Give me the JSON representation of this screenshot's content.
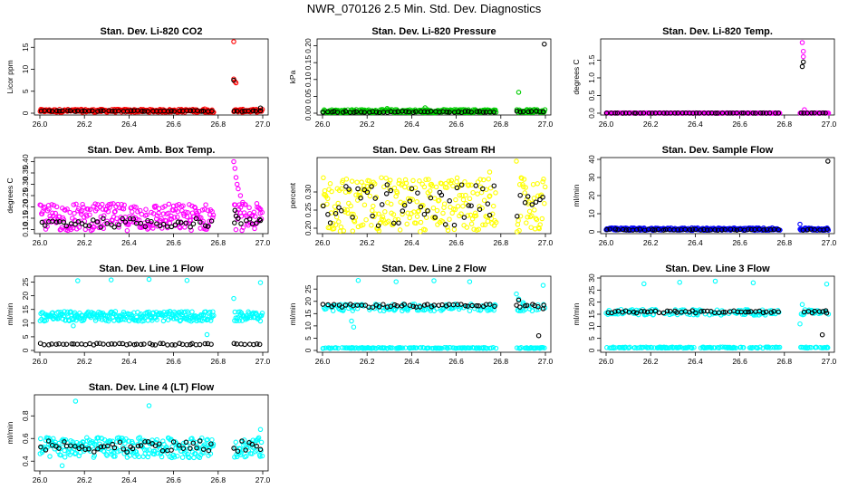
{
  "page": {
    "title": "NWR_070126  2.5 Min. Std. Dev. Diagnostics"
  },
  "colors": {
    "red": "#ff0000",
    "green": "#00cc00",
    "magenta": "#ff00ff",
    "yellow": "#ffff00",
    "blue": "#0000ff",
    "cyan": "#00ffff",
    "black": "#000000"
  },
  "chart_data": [
    {
      "type": "scatter",
      "title": "Stan. Dev. Li-820 CO2",
      "xlabel": "",
      "ylabel": "Licor ppm",
      "xlim": [
        26.0,
        27.0
      ],
      "ylim": [
        0,
        16.5
      ],
      "xticks": [
        "26.0",
        "26.2",
        "26.4",
        "26.6",
        "26.8",
        "27.0"
      ],
      "yticks": [
        0,
        5,
        10,
        15
      ],
      "series": [
        {
          "name": "points",
          "color": "#ff0000",
          "gen": {
            "gaps": [
              [
                26.78,
                26.87
              ]
            ],
            "base": 0.55,
            "noise": 0.35,
            "outliers": [
              [
                26.87,
                16.3
              ],
              [
                26.87,
                7.8
              ],
              [
                26.875,
                7.2
              ],
              [
                26.88,
                6.9
              ],
              [
                26.74,
                1.0
              ]
            ]
          }
        },
        {
          "name": "markers",
          "color": "#000000",
          "gen": {
            "gaps": [
              [
                26.78,
                26.87
              ]
            ],
            "base": 0.5,
            "noise": 0.1,
            "count": 60,
            "outliers": [
              [
                26.87,
                7.5
              ],
              [
                26.99,
                1.2
              ]
            ]
          }
        }
      ]
    },
    {
      "type": "scatter",
      "title": "Stan. Dev. Li-820 Pressure",
      "xlabel": "",
      "ylabel": "kPa",
      "xlim": [
        26.0,
        27.0
      ],
      "ylim": [
        0,
        0.215
      ],
      "xticks": [
        "26.0",
        "26.2",
        "26.4",
        "26.6",
        "26.8",
        "27.0"
      ],
      "yticks": [
        "0.00",
        "0.05",
        "0.10",
        "0.15",
        "0.20"
      ],
      "series": [
        {
          "name": "points",
          "color": "#00cc00",
          "gen": {
            "gaps": [
              [
                26.78,
                26.87
              ]
            ],
            "base": 0.006,
            "noise": 0.005,
            "outliers": [
              [
                26.88,
                0.062
              ],
              [
                26.46,
                0.016
              ],
              [
                26.29,
                0.014
              ]
            ]
          }
        },
        {
          "name": "markers",
          "color": "#000000",
          "gen": {
            "gaps": [
              [
                26.78,
                26.87
              ]
            ],
            "base": 0.004,
            "noise": 0.002,
            "count": 60,
            "outliers": [
              [
                26.995,
                0.205
              ]
            ]
          }
        }
      ]
    },
    {
      "type": "scatter",
      "title": "Stan. Dev. Li-820 Temp.",
      "xlabel": "",
      "ylabel": "degrees C",
      "xlim": [
        26.0,
        27.0
      ],
      "ylim": [
        0,
        2.05
      ],
      "xticks": [
        "26.0",
        "26.2",
        "26.4",
        "26.6",
        "26.8",
        "27.0"
      ],
      "yticks": [
        "0.0",
        "0.5",
        "1.0",
        "1.5"
      ],
      "series": [
        {
          "name": "points",
          "color": "#ff00ff",
          "gen": {
            "gaps": [
              [
                26.78,
                26.87
              ]
            ],
            "base": 0.005,
            "noise": 0.005,
            "outliers": [
              [
                26.88,
                2.0
              ],
              [
                26.885,
                1.75
              ],
              [
                26.885,
                1.6
              ],
              [
                26.89,
                0.1
              ]
            ]
          }
        },
        {
          "name": "markers",
          "color": "#000000",
          "gen": {
            "gaps": [
              [
                26.78,
                26.87
              ]
            ],
            "base": 0.003,
            "noise": 0.002,
            "count": 60,
            "outliers": [
              [
                26.88,
                1.32
              ],
              [
                26.885,
                1.45
              ]
            ]
          }
        }
      ]
    },
    {
      "type": "scatter",
      "title": "Stan. Dev. Amb. Box Temp.",
      "xlabel": "",
      "ylabel": "degrees C",
      "xlim": [
        26.0,
        27.0
      ],
      "ylim": [
        0.09,
        0.41
      ],
      "xticks": [
        "26.0",
        "26.2",
        "26.4",
        "26.6",
        "26.8",
        "27.0"
      ],
      "yticks": [
        "0.10",
        "0.15",
        "0.20",
        "0.25",
        "0.30",
        "0.35",
        "0.40"
      ],
      "series": [
        {
          "name": "points",
          "color": "#ff00ff",
          "gen": {
            "gaps": [
              [
                26.78,
                26.87
              ]
            ],
            "base": 0.155,
            "noise": 0.06,
            "outliers": [
              [
                26.87,
                0.4
              ],
              [
                26.875,
                0.37
              ],
              [
                26.88,
                0.33
              ],
              [
                26.885,
                0.3
              ],
              [
                26.89,
                0.28
              ],
              [
                26.9,
                0.25
              ],
              [
                26.91,
                0.22
              ]
            ]
          }
        },
        {
          "name": "markers",
          "color": "#000000",
          "gen": {
            "gaps": [
              [
                26.78,
                26.87
              ]
            ],
            "base": 0.13,
            "noise": 0.02,
            "count": 60,
            "outliers": [
              [
                26.875,
                0.185
              ],
              [
                26.88,
                0.16
              ],
              [
                26.99,
                0.14
              ]
            ]
          }
        }
      ]
    },
    {
      "type": "scatter",
      "title": "Stan. Dev. Gas Stream RH",
      "xlabel": "",
      "ylabel": "percent",
      "xlim": [
        26.0,
        27.0
      ],
      "ylim": [
        0.19,
        0.39
      ],
      "xticks": [
        "26.0",
        "26.2",
        "26.4",
        "26.6",
        "26.8",
        "27.0"
      ],
      "yticks": [
        "0.20",
        "0.25",
        "0.30"
      ],
      "series": [
        {
          "name": "points",
          "color": "#ffff00",
          "gen": {
            "gaps": [
              [
                26.78,
                26.87
              ]
            ],
            "base": 0.265,
            "noise": 0.075,
            "outliers": [
              [
                26.87,
                0.385
              ],
              [
                26.75,
                0.355
              ]
            ]
          }
        },
        {
          "name": "markers",
          "color": "#000000",
          "gen": {
            "gaps": [
              [
                26.78,
                26.87
              ]
            ],
            "base": 0.26,
            "noise": 0.06,
            "count": 60,
            "outliers": [
              [
                26.22,
                0.315
              ],
              [
                26.29,
                0.32
              ]
            ]
          }
        }
      ]
    },
    {
      "type": "scatter",
      "title": "Stan. Dev. Sample Flow",
      "xlabel": "",
      "ylabel": "ml/min",
      "xlim": [
        26.0,
        27.0
      ],
      "ylim": [
        0,
        40
      ],
      "xticks": [
        "26.0",
        "26.2",
        "26.4",
        "26.6",
        "26.8",
        "27.0"
      ],
      "yticks": [
        0,
        10,
        20,
        30,
        40
      ],
      "series": [
        {
          "name": "points",
          "color": "#0000ff",
          "gen": {
            "gaps": [
              [
                26.78,
                26.87
              ]
            ],
            "base": 1.5,
            "noise": 0.7,
            "outliers": [
              [
                26.87,
                4.2
              ]
            ]
          }
        },
        {
          "name": "markers",
          "color": "#000000",
          "gen": {
            "gaps": [
              [
                26.78,
                26.87
              ]
            ],
            "base": 1.2,
            "noise": 0.3,
            "count": 60,
            "outliers": [
              [
                26.995,
                39.0
              ]
            ]
          }
        }
      ]
    },
    {
      "type": "scatter",
      "title": "Stan. Dev. Line 1 Flow",
      "xlabel": "",
      "ylabel": "ml/min",
      "xlim": [
        26.0,
        27.0
      ],
      "ylim": [
        0,
        26.5
      ],
      "xticks": [
        "26.0",
        "26.2",
        "26.4",
        "26.6",
        "26.8",
        "27.0"
      ],
      "yticks": [
        0,
        5,
        10,
        15,
        20,
        25
      ],
      "series": [
        {
          "name": "points",
          "color": "#00ffff",
          "gen": {
            "gaps": [
              [
                26.78,
                26.87
              ]
            ],
            "base": 12.5,
            "noise": 1.8,
            "outliers": [
              [
                26.17,
                25.5
              ],
              [
                26.32,
                25.8
              ],
              [
                26.49,
                26.0
              ],
              [
                26.66,
                25.6
              ],
              [
                26.99,
                24.8
              ],
              [
                26.15,
                9.0
              ],
              [
                26.13,
                11.0
              ],
              [
                26.75,
                5.8
              ],
              [
                26.87,
                19.0
              ]
            ]
          }
        },
        {
          "name": "markers",
          "color": "#000000",
          "gen": {
            "gaps": [
              [
                26.78,
                26.87
              ]
            ],
            "base": 2.3,
            "noise": 0.3,
            "count": 60,
            "outliers": []
          }
        }
      ]
    },
    {
      "type": "scatter",
      "title": "Stan. Dev. Line 2 Flow",
      "xlabel": "",
      "ylabel": "ml/min",
      "xlim": [
        26.0,
        27.0
      ],
      "ylim": [
        0,
        29.5
      ],
      "xticks": [
        "26.0",
        "26.2",
        "26.4",
        "26.6",
        "26.8",
        "27.0"
      ],
      "yticks": [
        0,
        5,
        10,
        15,
        20,
        25
      ],
      "series": [
        {
          "name": "points",
          "color": "#00ffff",
          "gen": {
            "gaps": [
              [
                26.78,
                26.87
              ]
            ],
            "base": 17.5,
            "noise": 1.4,
            "dual": 1.0,
            "outliers": [
              [
                26.16,
                28.5
              ],
              [
                26.33,
                28.0
              ],
              [
                26.5,
                28.4
              ],
              [
                26.66,
                28.0
              ],
              [
                26.99,
                26.5
              ],
              [
                26.14,
                9.5
              ],
              [
                26.13,
                12.0
              ],
              [
                26.87,
                23.0
              ],
              [
                26.88,
                21.0
              ],
              [
                26.9,
                19.5
              ]
            ]
          }
        },
        {
          "name": "markers",
          "color": "#000000",
          "gen": {
            "gaps": [
              [
                26.78,
                26.87
              ]
            ],
            "base": 18.2,
            "noise": 0.6,
            "count": 60,
            "outliers": [
              [
                26.97,
                6.0
              ],
              [
                26.88,
                20.5
              ],
              [
                26.99,
                17.0
              ]
            ]
          }
        }
      ]
    },
    {
      "type": "scatter",
      "title": "Stan. Dev. Line 3 Flow",
      "xlabel": "",
      "ylabel": "ml/min",
      "xlim": [
        26.0,
        27.0
      ],
      "ylim": [
        0,
        30
      ],
      "xticks": [
        "26.0",
        "26.2",
        "26.4",
        "26.6",
        "26.8",
        "27.0"
      ],
      "yticks": [
        0,
        5,
        10,
        15,
        20,
        25,
        30
      ],
      "series": [
        {
          "name": "points",
          "color": "#00ffff",
          "gen": {
            "gaps": [
              [
                26.78,
                26.87
              ]
            ],
            "base": 15.8,
            "noise": 1.2,
            "dual": 1.2,
            "outliers": [
              [
                26.17,
                27.6
              ],
              [
                26.33,
                28.2
              ],
              [
                26.49,
                28.7
              ],
              [
                26.66,
                28.0
              ],
              [
                26.99,
                27.5
              ],
              [
                26.87,
                11.0
              ],
              [
                26.88,
                19.0
              ]
            ]
          }
        },
        {
          "name": "markers",
          "color": "#000000",
          "gen": {
            "gaps": [
              [
                26.78,
                26.87
              ]
            ],
            "base": 16.0,
            "noise": 0.5,
            "count": 60,
            "outliers": [
              [
                26.97,
                6.5
              ],
              [
                26.99,
                15.5
              ]
            ]
          }
        }
      ]
    },
    {
      "type": "scatter",
      "title": "Stan. Dev. Line 4 (LT) Flow",
      "xlabel": "",
      "ylabel": "ml/min",
      "xlim": [
        26.0,
        27.0
      ],
      "ylim": [
        0.33,
        0.97
      ],
      "xticks": [
        "26.0",
        "26.2",
        "26.4",
        "26.6",
        "26.8",
        "27.0"
      ],
      "yticks": [
        "0.4",
        "0.6",
        "0.8"
      ],
      "series": [
        {
          "name": "points",
          "color": "#00ffff",
          "gen": {
            "gaps": [
              [
                26.78,
                26.87
              ]
            ],
            "base": 0.52,
            "noise": 0.09,
            "outliers": [
              [
                26.16,
                0.93
              ],
              [
                26.49,
                0.89
              ],
              [
                26.99,
                0.68
              ],
              [
                26.1,
                0.36
              ]
            ]
          }
        },
        {
          "name": "markers",
          "color": "#000000",
          "gen": {
            "gaps": [
              [
                26.78,
                26.87
              ]
            ],
            "base": 0.53,
            "noise": 0.05,
            "count": 60,
            "outliers": []
          }
        }
      ]
    }
  ]
}
